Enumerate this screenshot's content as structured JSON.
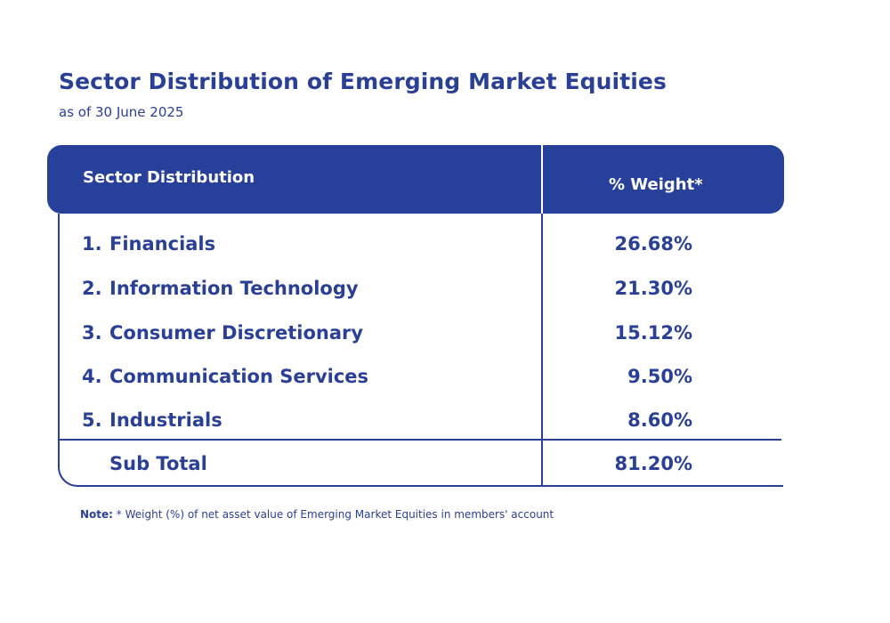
{
  "document": {
    "title": "Sector Distribution of Emerging Market Equities",
    "subtitle": "as of 30 June 2025"
  },
  "table": {
    "header_sector": "Sector Distribution",
    "header_weight": "% Weight*",
    "rows": [
      {
        "num": "1.",
        "label": "Financials",
        "value": "26.68%"
      },
      {
        "num": "2.",
        "label": "Information Technology",
        "value": "21.30%"
      },
      {
        "num": "3.",
        "label": "Consumer Discretionary",
        "value": "15.12%"
      },
      {
        "num": "4.",
        "label": "Communication Services",
        "value": "9.50%"
      },
      {
        "num": "5.",
        "label": "Industrials",
        "value": "8.60%"
      }
    ],
    "subtotal_label": "Sub Total",
    "subtotal_value": "81.20%"
  },
  "note": {
    "label": "Note:",
    "text": "* Weight (%) of net asset value of Emerging Market Equities in members' account"
  },
  "colors": {
    "primary": "#2a3f96",
    "header_bg": "#27409a",
    "background": "#ffffff"
  }
}
